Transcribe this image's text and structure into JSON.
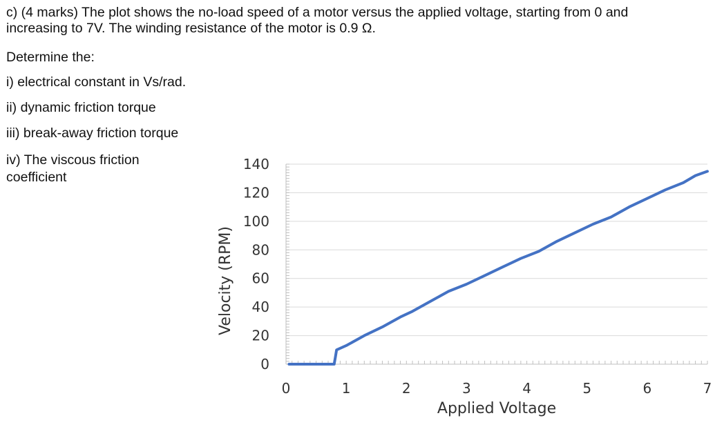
{
  "question": {
    "intro_line1": "c) (4 marks) The plot shows the no-load speed of a motor versus the applied voltage, starting from 0 and",
    "intro_line2": "increasing to 7V. The winding resistance of the motor is 0.9 Ω.",
    "determine": "Determine the:",
    "parts": [
      "i) electrical constant in Vs/rad.",
      "ii) dynamic friction torque",
      "iii) break-away friction torque"
    ],
    "part4_line1": "iv) The viscous friction",
    "part4_line2": "coefficient"
  },
  "chart_data": {
    "type": "line",
    "xlabel": "Applied Voltage",
    "ylabel": "Velocity (RPM)",
    "xlim": [
      0,
      7
    ],
    "ylim": [
      0,
      140
    ],
    "xticks": [
      0,
      1,
      2,
      3,
      4,
      5,
      6,
      7
    ],
    "yticks": [
      0,
      20,
      40,
      60,
      80,
      100,
      120,
      140
    ],
    "grid": true,
    "line_color": "#4472C4",
    "series": [
      {
        "x": [
          0.05,
          0.8,
          0.82,
          0.84,
          1.0,
          1.3,
          1.6,
          1.9,
          2.1,
          2.4,
          2.7,
          3.0,
          3.3,
          3.6,
          3.9,
          4.2,
          4.5,
          4.8,
          5.1,
          5.4,
          5.7,
          6.0,
          6.3,
          6.6,
          6.8,
          7.0
        ],
        "y": [
          0,
          0,
          5,
          10,
          13,
          20,
          26,
          33,
          37,
          44,
          51,
          56,
          62,
          68,
          74,
          79,
          86,
          92,
          98,
          103,
          110,
          116,
          122,
          127,
          132,
          135
        ]
      }
    ]
  }
}
